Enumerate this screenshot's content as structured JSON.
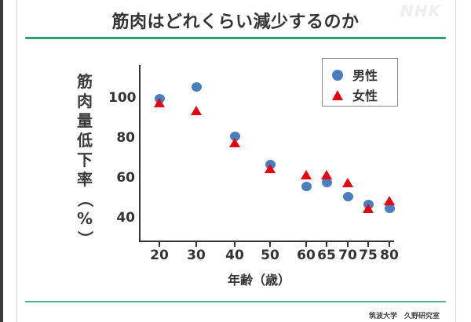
{
  "header": {
    "title": "筋肉はどれくらい減少するのか",
    "logo": "NHK"
  },
  "footer": {
    "credit": "筑波大学　久野研究室"
  },
  "colors": {
    "accent_green": "#2aa36b",
    "male": "#4a7fbd",
    "female": "#e60012"
  },
  "chart_data": {
    "type": "scatter",
    "title": "筋肉はどれくらい減少するのか",
    "xlabel": "年齢（歳）",
    "ylabel": "筋肉量低下率（%）",
    "x": [
      20,
      30,
      40,
      50,
      60,
      65,
      70,
      75,
      80
    ],
    "x_tick_labels": [
      "20",
      "30",
      "40",
      "50",
      "60",
      "65",
      "70",
      "75",
      "80"
    ],
    "y_tick_labels": [
      "100",
      "80",
      "60",
      "40"
    ],
    "ylim": [
      32,
      115
    ],
    "grid": false,
    "legend_position": "upper right",
    "series": [
      {
        "name": "男性",
        "marker": "circle",
        "color": "#4a7fbd",
        "values": [
          100,
          106,
          81,
          67,
          56,
          58,
          51,
          47,
          45
        ]
      },
      {
        "name": "女性",
        "marker": "triangle",
        "color": "#e60012",
        "values": [
          98,
          94,
          78,
          65,
          62,
          62,
          58,
          45,
          49
        ]
      }
    ]
  },
  "legend": {
    "items": [
      {
        "label": "男性",
        "icon": "circle-marker"
      },
      {
        "label": "女性",
        "icon": "triangle-marker"
      }
    ]
  },
  "axis": {
    "ylabel_chars": [
      "筋",
      "肉",
      "量",
      "低",
      "下",
      "率",
      "（",
      "%",
      "）"
    ]
  }
}
